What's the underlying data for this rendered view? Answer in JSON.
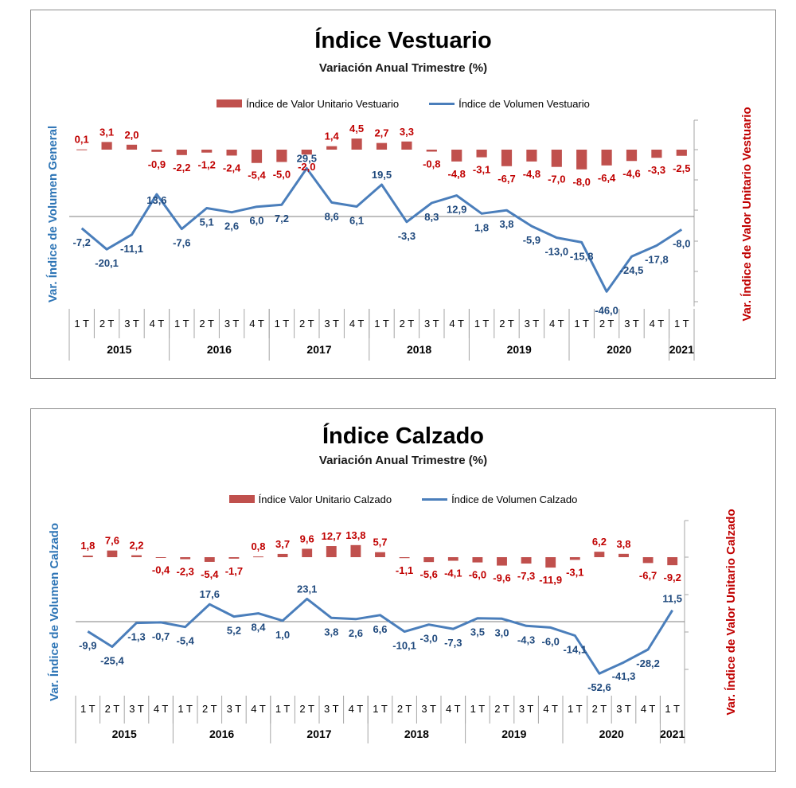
{
  "chart_data": [
    {
      "type": "bar+line",
      "title": "Índice Vestuario",
      "subtitle": "Variación Anual Trimestre  (%)",
      "ylabel_left": "Var. Índice de Volumen General",
      "ylabel_right": "Var. Índice de Valor Unitario Vestuario",
      "legend_position": "top",
      "quarters": [
        "1 T",
        "2 T",
        "3 T",
        "4 T",
        "1 T",
        "2 T",
        "3 T",
        "4 T",
        "1 T",
        "2 T",
        "3 T",
        "4 T",
        "1 T",
        "2 T",
        "3 T",
        "4 T",
        "1 T",
        "2 T",
        "3 T",
        "4 T",
        "1 T",
        "2 T",
        "3 T",
        "4 T",
        "1 T"
      ],
      "years": [
        {
          "label": "2015",
          "count": 4
        },
        {
          "label": "2016",
          "count": 4
        },
        {
          "label": "2017",
          "count": 4
        },
        {
          "label": "2018",
          "count": 4
        },
        {
          "label": "2019",
          "count": 4
        },
        {
          "label": "2020",
          "count": 4
        },
        {
          "label": "2021",
          "count": 1
        }
      ],
      "series": [
        {
          "name": "Índice de Valor Unitario Vestuario",
          "kind": "bar",
          "color": "#c0504d",
          "values": [
            0.1,
            3.1,
            2.0,
            -0.9,
            -2.2,
            -1.2,
            -2.4,
            -5.4,
            -5.0,
            -2.0,
            1.4,
            4.5,
            2.7,
            3.3,
            -0.8,
            -4.8,
            -3.1,
            -6.7,
            -4.8,
            -7.0,
            -8.0,
            -6.4,
            -4.6,
            -3.3,
            -2.5
          ],
          "labels": [
            "0,1",
            "3,1",
            "2,0",
            "-0,9",
            "-2,2",
            "-1,2",
            "-2,4",
            "-5,4",
            "-5,0",
            "-2,0",
            "1,4",
            "4,5",
            "2,7",
            "3,3",
            "-0,8",
            "-4,8",
            "-3,1",
            "-6,7",
            "-4,8",
            "-7,0",
            "-8,0",
            "-6,4",
            "-4,6",
            "-3,3",
            "-2,5"
          ]
        },
        {
          "name": "Índice de Volumen Vestuario",
          "kind": "line",
          "color": "#4a7ebb",
          "values": [
            -7.2,
            -20.1,
            -11.1,
            13.6,
            -7.6,
            5.1,
            2.6,
            6.0,
            7.2,
            29.5,
            8.6,
            6.1,
            19.5,
            -3.3,
            8.3,
            12.9,
            1.8,
            3.8,
            -5.9,
            -13.0,
            -15.8,
            -46.0,
            -24.5,
            -17.8,
            -8.0
          ],
          "labels": [
            "-7,2",
            "-20,1",
            "-11,1",
            "13,6",
            "-7,6",
            "5,1",
            "2,6",
            "6,0",
            "7,2",
            "29,5",
            "8,6",
            "6,1",
            "19,5",
            "-3,3",
            "8,3",
            "12,9",
            "1,8",
            "3,8",
            "-5,9",
            "-13,0",
            "-15,8",
            "-46,0",
            "-24,5",
            "-17,8",
            "-8,0"
          ]
        }
      ]
    },
    {
      "type": "bar+line",
      "title": "Índice Calzado",
      "subtitle": "Variación Anual Trimestre  (%)",
      "ylabel_left": "Var. Índice de Volumen Calzado",
      "ylabel_right": "Var. Índice de Valor Unitario Calzado",
      "legend_position": "top",
      "quarters": [
        "1 T",
        "2 T",
        "3 T",
        "4 T",
        "1 T",
        "2 T",
        "3 T",
        "4 T",
        "1 T",
        "2 T",
        "3 T",
        "4 T",
        "1 T",
        "2 T",
        "3 T",
        "4 T",
        "1 T",
        "2 T",
        "3 T",
        "4 T",
        "1 T",
        "2 T",
        "3 T",
        "4 T",
        "1 T"
      ],
      "years": [
        {
          "label": "2015",
          "count": 4
        },
        {
          "label": "2016",
          "count": 4
        },
        {
          "label": "2017",
          "count": 4
        },
        {
          "label": "2018",
          "count": 4
        },
        {
          "label": "2019",
          "count": 4
        },
        {
          "label": "2020",
          "count": 4
        },
        {
          "label": "2021",
          "count": 1
        }
      ],
      "series": [
        {
          "name": "Índice Valor Unitario Calzado",
          "kind": "bar",
          "color": "#c0504d",
          "values": [
            1.8,
            7.6,
            2.2,
            -0.4,
            -2.3,
            -5.4,
            -1.7,
            0.8,
            3.7,
            9.6,
            12.7,
            13.8,
            5.7,
            -1.1,
            -5.6,
            -4.1,
            -6.0,
            -9.6,
            -7.3,
            -11.9,
            -3.1,
            6.2,
            3.8,
            -6.7,
            -9.2
          ],
          "labels": [
            "1,8",
            "7,6",
            "2,2",
            "-0,4",
            "-2,3",
            "-5,4",
            "-1,7",
            "0,8",
            "3,7",
            "9,6",
            "12,7",
            "13,8",
            "5,7",
            "-1,1",
            "-5,6",
            "-4,1",
            "-6,0",
            "-9,6",
            "-7,3",
            "-11,9",
            "-3,1",
            "6,2",
            "3,8",
            "-6,7",
            "-9,2"
          ]
        },
        {
          "name": "Índice de Volumen Calzado",
          "kind": "line",
          "color": "#4a7ebb",
          "values": [
            -9.9,
            -25.4,
            -1.3,
            -0.7,
            -5.4,
            17.6,
            5.2,
            8.4,
            1.0,
            23.1,
            3.8,
            2.6,
            6.6,
            -10.1,
            -3.0,
            -7.3,
            3.5,
            3.0,
            -4.3,
            -6.0,
            -14.1,
            -52.6,
            -41.3,
            -28.2,
            11.5
          ],
          "labels": [
            "-9,9",
            "-25,4",
            "-1,3",
            "-0,7",
            "-5,4",
            "17,6",
            "5,2",
            "8,4",
            "1,0",
            "23,1",
            "3,8",
            "2,6",
            "6,6",
            "-10,1",
            "-3,0",
            "-7,3",
            "3,5",
            "3,0",
            "-4,3",
            "-6,0",
            "-14,1",
            "-52,6",
            "-41,3",
            "-28,2",
            "11,5"
          ]
        }
      ]
    }
  ]
}
